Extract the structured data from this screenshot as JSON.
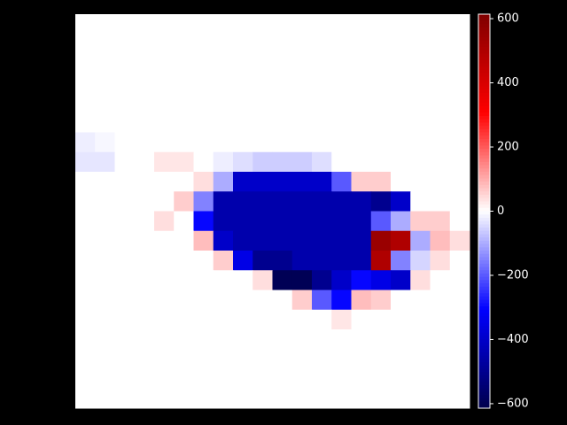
{
  "chart_data": {
    "type": "heatmap",
    "colormap": "seismic",
    "clim": [
      -614,
      614
    ],
    "cticks": [
      {
        "value": 600,
        "label": "600"
      },
      {
        "value": 400,
        "label": "400"
      },
      {
        "value": 200,
        "label": "200"
      },
      {
        "value": 0,
        "label": "0"
      },
      {
        "value": -200,
        "label": "−200"
      },
      {
        "value": -400,
        "label": "−400"
      },
      {
        "value": -600,
        "label": "−600"
      }
    ],
    "z": [
      [
        0,
        0,
        0,
        0,
        0,
        0,
        0,
        0,
        0,
        0,
        0,
        0,
        0,
        0,
        0,
        0,
        0,
        0,
        0,
        0
      ],
      [
        0,
        0,
        0,
        0,
        0,
        0,
        0,
        0,
        0,
        0,
        0,
        0,
        0,
        0,
        0,
        0,
        0,
        0,
        0,
        0
      ],
      [
        0,
        0,
        0,
        0,
        0,
        0,
        0,
        0,
        0,
        0,
        0,
        0,
        0,
        0,
        0,
        0,
        0,
        0,
        0,
        0
      ],
      [
        0,
        0,
        0,
        0,
        0,
        0,
        0,
        0,
        0,
        0,
        0,
        0,
        0,
        0,
        0,
        0,
        0,
        0,
        0,
        0
      ],
      [
        0,
        0,
        0,
        0,
        0,
        0,
        0,
        0,
        0,
        0,
        0,
        0,
        0,
        0,
        0,
        0,
        0,
        0,
        0,
        0
      ],
      [
        0,
        0,
        0,
        0,
        0,
        0,
        0,
        0,
        0,
        0,
        0,
        0,
        0,
        0,
        0,
        0,
        0,
        0,
        0,
        0
      ],
      [
        -20,
        -10,
        0,
        0,
        0,
        0,
        0,
        0,
        0,
        0,
        0,
        0,
        0,
        0,
        0,
        0,
        0,
        0,
        0,
        0
      ],
      [
        -30,
        -30,
        0,
        0,
        30,
        30,
        0,
        -20,
        -40,
        -60,
        -60,
        -60,
        -40,
        0,
        0,
        0,
        0,
        0,
        0,
        0
      ],
      [
        0,
        0,
        0,
        0,
        0,
        0,
        40,
        -100,
        -400,
        -400,
        -400,
        -400,
        -400,
        -200,
        60,
        60,
        0,
        0,
        0,
        0
      ],
      [
        0,
        0,
        0,
        0,
        0,
        60,
        -150,
        -450,
        -450,
        -450,
        -450,
        -450,
        -450,
        -450,
        -450,
        -500,
        -400,
        0,
        0,
        0
      ],
      [
        0,
        0,
        0,
        0,
        40,
        0,
        -300,
        -450,
        -450,
        -450,
        -450,
        -450,
        -450,
        -450,
        -450,
        -200,
        -100,
        60,
        60,
        0
      ],
      [
        0,
        0,
        0,
        0,
        0,
        0,
        80,
        -400,
        -450,
        -450,
        -450,
        -450,
        -450,
        -450,
        -450,
        550,
        500,
        -100,
        80,
        40
      ],
      [
        0,
        0,
        0,
        0,
        0,
        0,
        0,
        60,
        -350,
        -500,
        -500,
        -450,
        -450,
        -450,
        -450,
        500,
        -150,
        -50,
        40,
        0
      ],
      [
        0,
        0,
        0,
        0,
        0,
        0,
        0,
        0,
        0,
        40,
        -600,
        -600,
        -500,
        -400,
        -300,
        -350,
        -400,
        40,
        0,
        0
      ],
      [
        0,
        0,
        0,
        0,
        0,
        0,
        0,
        0,
        0,
        0,
        0,
        60,
        -200,
        -300,
        80,
        60,
        0,
        0,
        0,
        0
      ],
      [
        0,
        0,
        0,
        0,
        0,
        0,
        0,
        0,
        0,
        0,
        0,
        0,
        0,
        30,
        0,
        0,
        0,
        0,
        0,
        0
      ],
      [
        0,
        0,
        0,
        0,
        0,
        0,
        0,
        0,
        0,
        0,
        0,
        0,
        0,
        0,
        0,
        0,
        0,
        0,
        0,
        0
      ],
      [
        0,
        0,
        0,
        0,
        0,
        0,
        0,
        0,
        0,
        0,
        0,
        0,
        0,
        0,
        0,
        0,
        0,
        0,
        0,
        0
      ],
      [
        0,
        0,
        0,
        0,
        0,
        0,
        0,
        0,
        0,
        0,
        0,
        0,
        0,
        0,
        0,
        0,
        0,
        0,
        0,
        0
      ],
      [
        0,
        0,
        0,
        0,
        0,
        0,
        0,
        0,
        0,
        0,
        0,
        0,
        0,
        0,
        0,
        0,
        0,
        0,
        0,
        0
      ]
    ]
  }
}
